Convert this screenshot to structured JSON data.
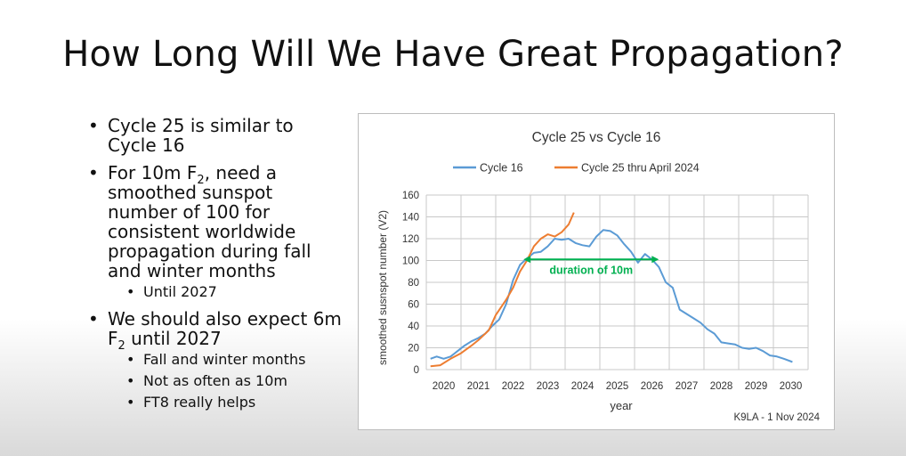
{
  "slide": {
    "title": "How Long Will We Have Great Propagation?",
    "bullets": {
      "b1": "Cycle 25 is similar to Cycle 16",
      "b2_prefix": "For 10m F",
      "b2_sub": "2",
      "b2_suffix": ", need a smoothed sunspot number of 100 for consistent worldwide propagation during fall and winter months",
      "b2_child": "Until 2027",
      "b3_prefix": "We should also expect 6m F",
      "b3_sub": "2",
      "b3_suffix": " until 2027",
      "b3_children": [
        "Fall and winter months",
        "Not as often as 10m",
        "FT8 really helps"
      ]
    }
  },
  "chart_data": {
    "type": "line",
    "title": "Cycle 25 vs Cycle 16",
    "xlabel": "year",
    "ylabel": "smoothed  susnspot number  (V2)",
    "xlim": [
      2019.5,
      2030.5
    ],
    "ylim": [
      0,
      160
    ],
    "xticks": [
      "2020",
      "2021",
      "2022",
      "2023",
      "2024",
      "2025",
      "2026",
      "2027",
      "2028",
      "2029",
      "2030"
    ],
    "yticks": [
      "0",
      "20",
      "40",
      "60",
      "80",
      "100",
      "120",
      "140",
      "160"
    ],
    "grid": true,
    "legend_position": "top",
    "series": [
      {
        "name": "Cycle 16",
        "color": "#5b9bd5",
        "points": [
          [
            2019.62,
            10
          ],
          [
            2019.8,
            12
          ],
          [
            2020.0,
            10
          ],
          [
            2020.2,
            12
          ],
          [
            2020.4,
            17
          ],
          [
            2020.6,
            22
          ],
          [
            2020.8,
            26
          ],
          [
            2021.0,
            29
          ],
          [
            2021.2,
            33
          ],
          [
            2021.4,
            40
          ],
          [
            2021.6,
            46
          ],
          [
            2021.8,
            60
          ],
          [
            2022.0,
            82
          ],
          [
            2022.2,
            96
          ],
          [
            2022.4,
            102
          ],
          [
            2022.6,
            107
          ],
          [
            2022.8,
            108
          ],
          [
            2023.0,
            113
          ],
          [
            2023.2,
            120
          ],
          [
            2023.4,
            119
          ],
          [
            2023.6,
            120
          ],
          [
            2023.8,
            116
          ],
          [
            2024.0,
            114
          ],
          [
            2024.2,
            113
          ],
          [
            2024.4,
            122
          ],
          [
            2024.6,
            128
          ],
          [
            2024.8,
            127
          ],
          [
            2025.0,
            123
          ],
          [
            2025.2,
            115
          ],
          [
            2025.4,
            108
          ],
          [
            2025.6,
            98
          ],
          [
            2025.8,
            106
          ],
          [
            2026.0,
            101
          ],
          [
            2026.2,
            94
          ],
          [
            2026.4,
            80
          ],
          [
            2026.6,
            75
          ],
          [
            2026.8,
            55
          ],
          [
            2027.0,
            51
          ],
          [
            2027.2,
            47
          ],
          [
            2027.4,
            43
          ],
          [
            2027.6,
            37
          ],
          [
            2027.8,
            33
          ],
          [
            2028.0,
            25
          ],
          [
            2028.2,
            24
          ],
          [
            2028.4,
            23
          ],
          [
            2028.6,
            20
          ],
          [
            2028.8,
            19
          ],
          [
            2029.0,
            20
          ],
          [
            2029.2,
            17
          ],
          [
            2029.4,
            13
          ],
          [
            2029.6,
            12
          ],
          [
            2029.8,
            10
          ],
          [
            2030.05,
            7
          ]
        ]
      },
      {
        "name": "Cycle 25 thru April 2024",
        "color": "#ed7d31",
        "points": [
          [
            2019.62,
            3
          ],
          [
            2019.9,
            4
          ],
          [
            2020.2,
            10
          ],
          [
            2020.5,
            15
          ],
          [
            2020.8,
            22
          ],
          [
            2021.0,
            27
          ],
          [
            2021.3,
            36
          ],
          [
            2021.5,
            50
          ],
          [
            2021.8,
            64
          ],
          [
            2022.0,
            75
          ],
          [
            2022.2,
            90
          ],
          [
            2022.4,
            100
          ],
          [
            2022.6,
            113
          ],
          [
            2022.8,
            120
          ],
          [
            2023.0,
            124
          ],
          [
            2023.2,
            122
          ],
          [
            2023.4,
            126
          ],
          [
            2023.6,
            133
          ],
          [
            2023.75,
            144
          ]
        ]
      }
    ],
    "annotations": [
      {
        "text": "duration of 10m",
        "color": "#00b050",
        "x_start": 2022.3,
        "x_end": 2026.2,
        "y": 101
      },
      {
        "text": "K9LA - 1 Nov 2024",
        "position": "bottom-right"
      }
    ]
  }
}
